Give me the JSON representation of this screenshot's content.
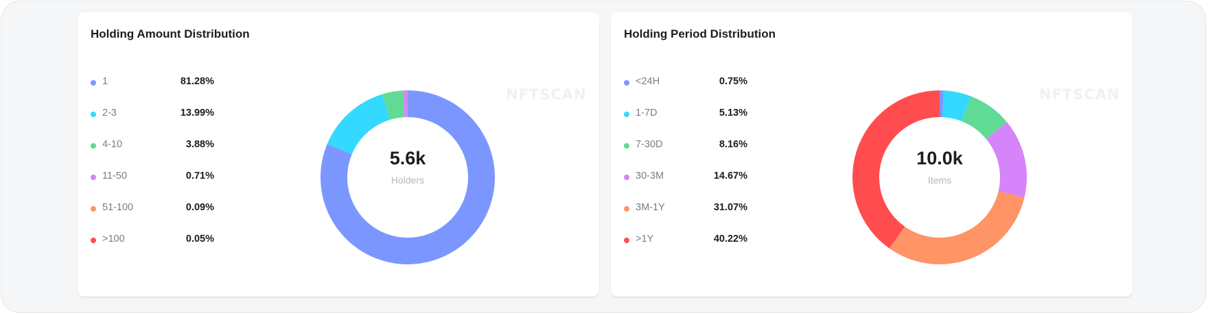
{
  "chart_data": [
    {
      "type": "pie",
      "donut": true,
      "title": "Holding Amount Distribution",
      "categories": [
        "1",
        "2-3",
        "4-10",
        "11-50",
        "51-100",
        ">100"
      ],
      "values": [
        81.28,
        13.99,
        3.88,
        0.71,
        0.09,
        0.05
      ],
      "value_labels": [
        "81.28%",
        "13.99%",
        "3.88%",
        "0.71%",
        "0.09%",
        "0.05%"
      ],
      "colors": [
        "#7B97FF",
        "#33D9FF",
        "#5FDB95",
        "#D684FA",
        "#FF9466",
        "#FF4D4F"
      ],
      "center_value": "5.6k",
      "center_label": "Holders",
      "legend": "left",
      "watermark": "NFTSCAN"
    },
    {
      "type": "pie",
      "donut": true,
      "title": "Holding Period Distribution",
      "categories": [
        "<24H",
        "1-7D",
        "7-30D",
        "30-3M",
        "3M-1Y",
        ">1Y"
      ],
      "values": [
        0.75,
        5.13,
        8.16,
        14.67,
        31.07,
        40.22
      ],
      "value_labels": [
        "0.75%",
        "5.13%",
        "8.16%",
        "14.67%",
        "31.07%",
        "40.22%"
      ],
      "colors": [
        "#7B97FF",
        "#33D9FF",
        "#5FDB95",
        "#D684FA",
        "#FF9466",
        "#FF4D4F"
      ],
      "center_value": "10.0k",
      "center_label": "Items",
      "legend": "left",
      "watermark": "NFTSCAN"
    }
  ]
}
